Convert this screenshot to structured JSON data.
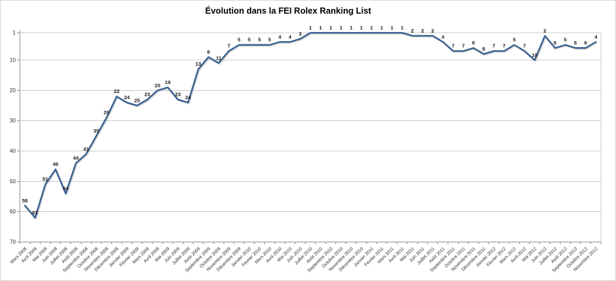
{
  "chart_data": {
    "type": "line",
    "title": "Évolution dans la FEI Rolex Ranking List",
    "xlabel": "",
    "ylabel": "",
    "y_axis_inverted": true,
    "ylim": [
      1,
      70
    ],
    "y_ticks": [
      1,
      10,
      20,
      30,
      40,
      50,
      60,
      70
    ],
    "grid": true,
    "legend": "none",
    "data_labels": true,
    "colors": {
      "line": "#365F91",
      "gridline": "#c9c9c9",
      "axis": "#8e8e8e",
      "tick_text": "#2b2b2b",
      "data_label_text": "#1a1a1a"
    },
    "categories": [
      "Mars 2008",
      "Avril 2008",
      "Mai 2008",
      "Juin 2008",
      "Juillet 2008",
      "Août 2008",
      "Septembre 2008",
      "Octobre 2008",
      "Novembre 2008",
      "Décembre 2008",
      "Janvier 2009",
      "Février 2009",
      "Mars 2009",
      "Avril 2009",
      "Mai 2009",
      "Juin 2009",
      "Juillet 2009",
      "Août 2009",
      "Septembre 2009",
      "Octobre 2009",
      "Novembre 2009",
      "Décembre 2009",
      "Janvier 2010",
      "Février 2010",
      "Mars 2010",
      "Avril 2010",
      "Mai 2010",
      "Juin 2010",
      "Juillet 2010",
      "Août 2010",
      "Septembre 2010",
      "Octobre 2010",
      "Novembre 2010",
      "Décembre 2010",
      "Janvier 2011",
      "Février 2011",
      "Mars 2011",
      "Avril 2011",
      "Mai 2011",
      "Juin 2011",
      "Juillet 2011",
      "Août 2011",
      "Septembre 2011",
      "Octobre 2011",
      "Novembre 2011",
      "Décembre 2011",
      "Janvier 2012",
      "Février 2012",
      "Mars 2012",
      "Avril 2012",
      "Mai 2012",
      "Juin 2012",
      "Juillet 2012",
      "Août 2012",
      "Septembre 2012",
      "Octobre 2012",
      "Novembre 2012"
    ],
    "values": [
      58,
      62,
      51,
      46,
      54,
      44,
      41,
      35,
      29,
      22,
      24,
      25,
      23,
      20,
      19,
      23,
      24,
      13,
      9,
      11,
      7,
      5,
      5,
      5,
      5,
      4,
      4,
      3,
      1,
      1,
      1,
      1,
      1,
      1,
      1,
      1,
      1,
      1,
      2,
      2,
      2,
      4,
      7,
      7,
      6,
      8,
      7,
      7,
      5,
      7,
      10,
      2,
      6,
      5,
      6,
      6,
      4
    ]
  }
}
